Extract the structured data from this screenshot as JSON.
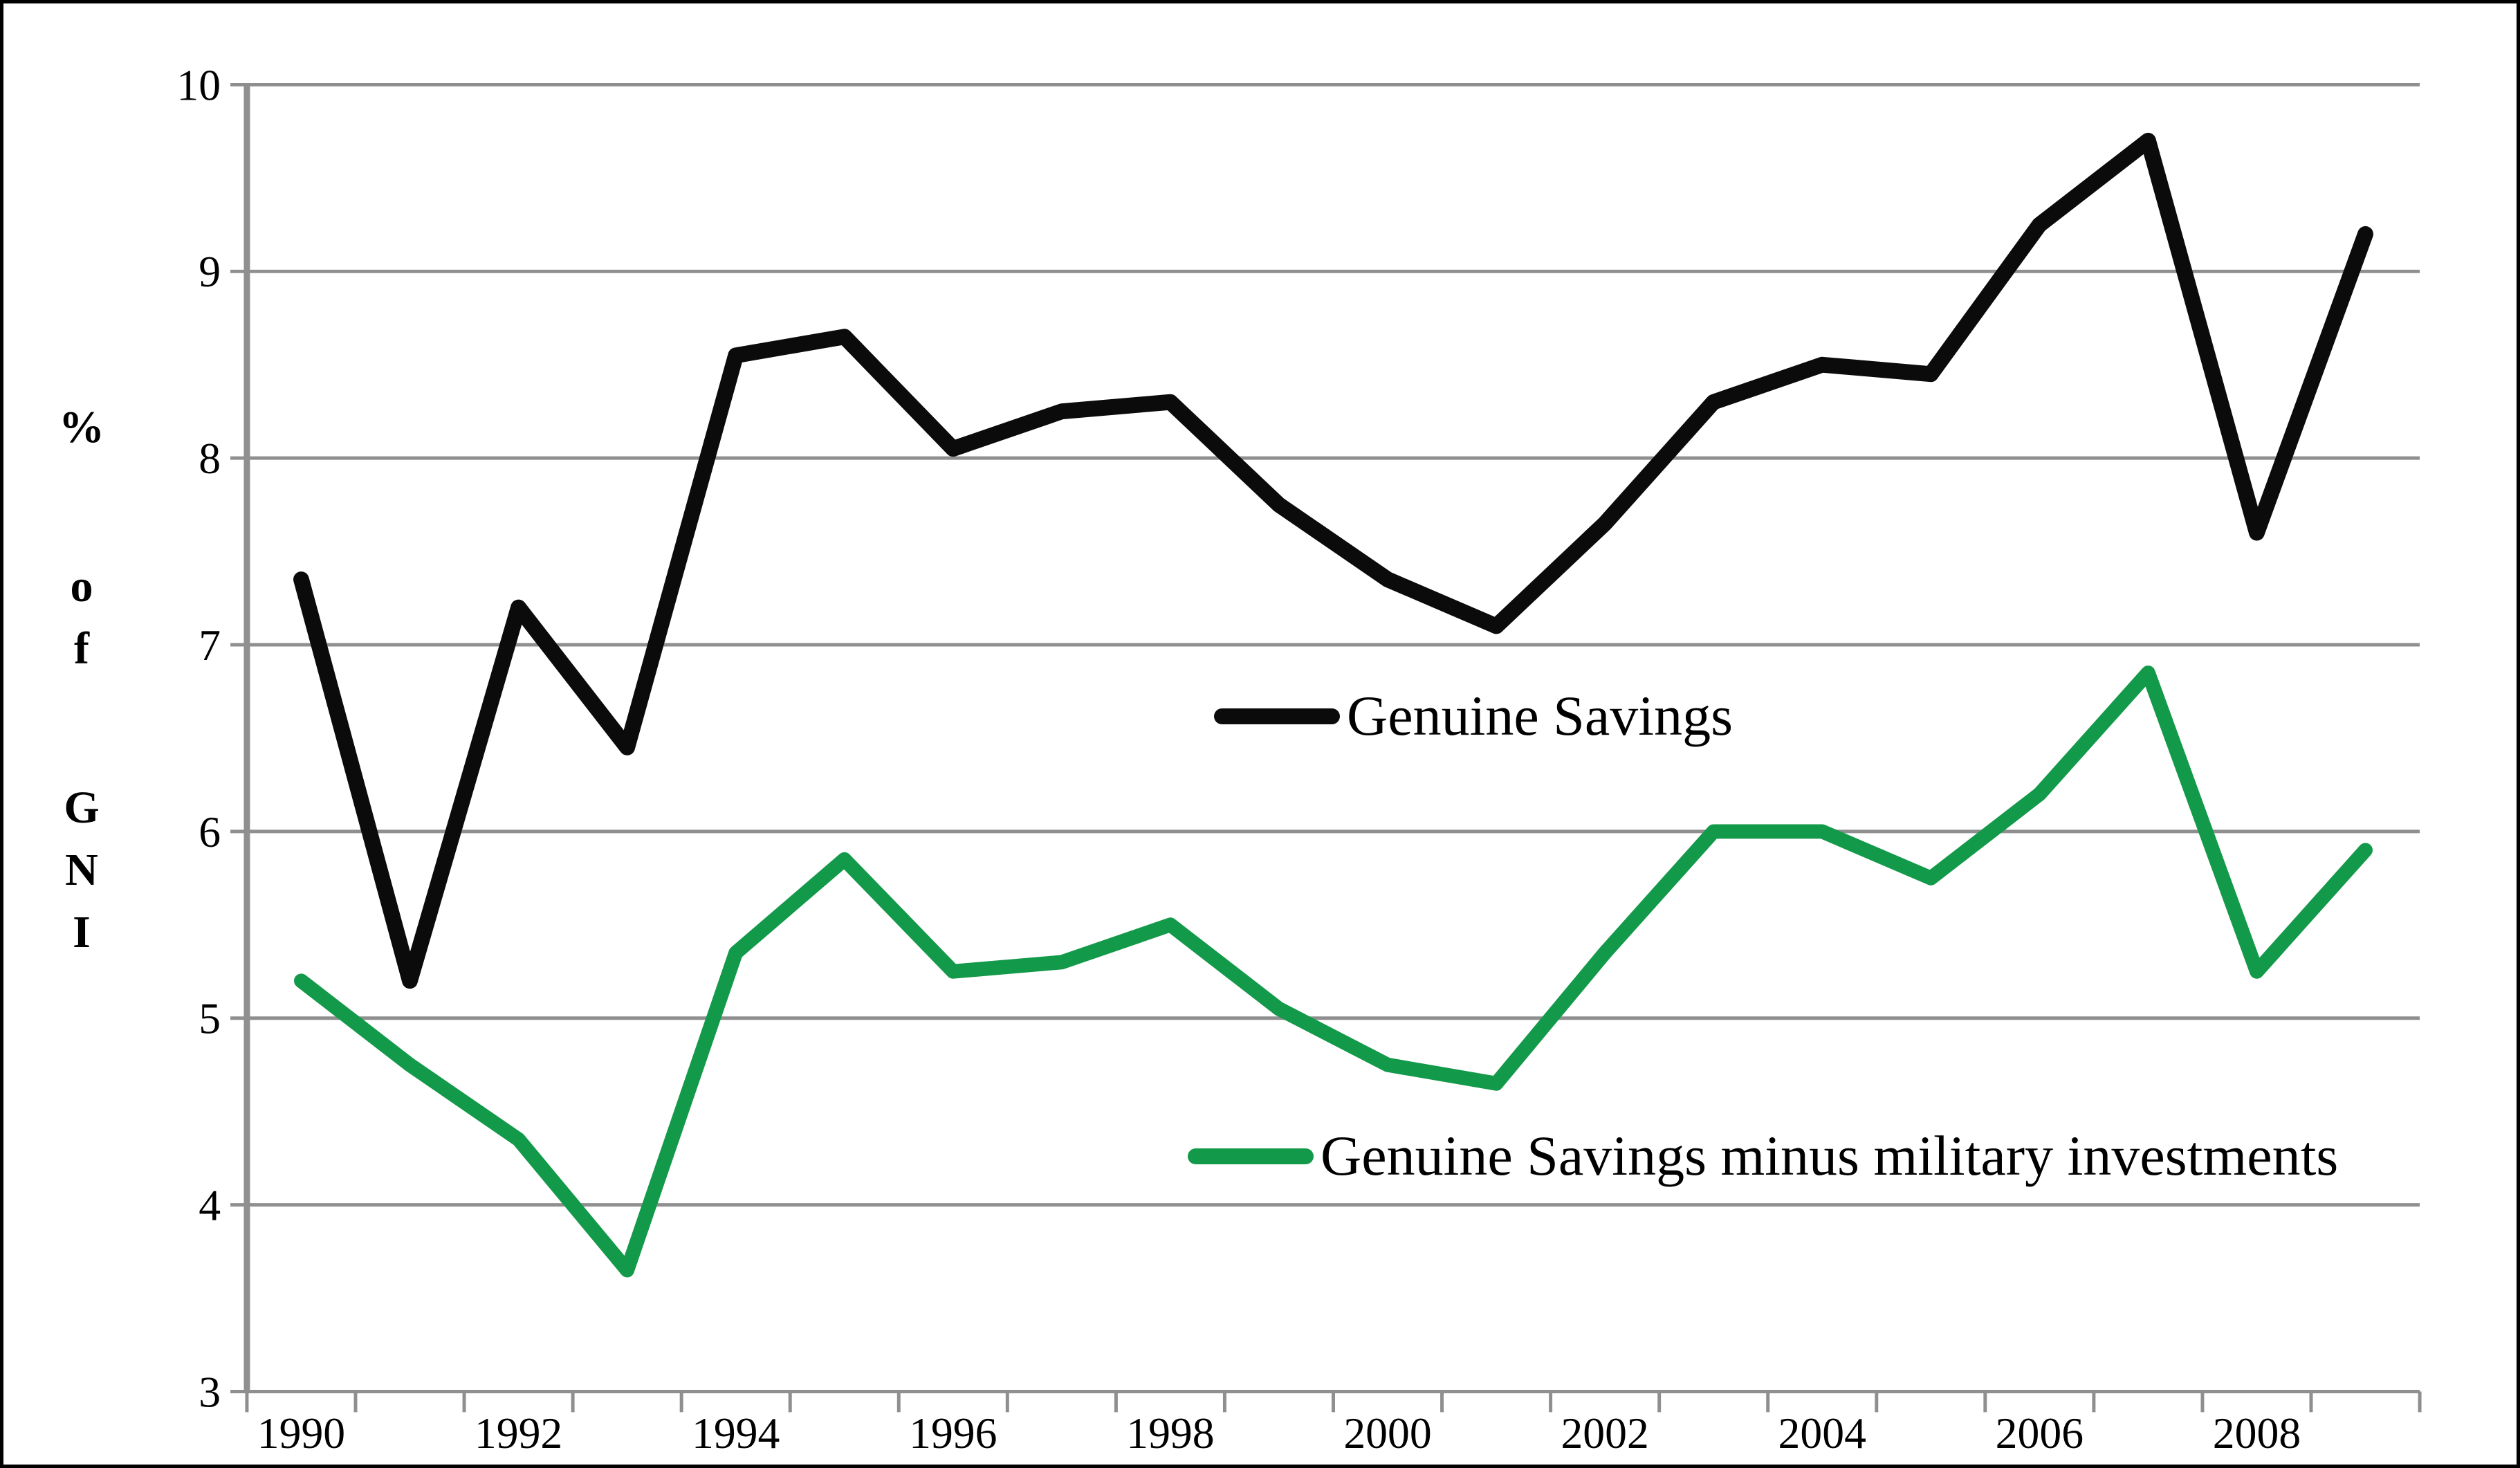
{
  "chart_data": {
    "type": "line",
    "title": "",
    "xlabel": "",
    "ylabel": "% of GNI",
    "ylim": [
      3,
      10
    ],
    "yticks": [
      3,
      4,
      5,
      6,
      7,
      8,
      9,
      10
    ],
    "categories": [
      1990,
      1991,
      1992,
      1993,
      1994,
      1995,
      1996,
      1997,
      1998,
      1999,
      2000,
      2001,
      2002,
      2003,
      2004,
      2005,
      2006,
      2007,
      2008,
      2009
    ],
    "xtick_labels": [
      "1990",
      "1992",
      "1994",
      "1996",
      "1998",
      "2000",
      "2002",
      "2004",
      "2006",
      "2008"
    ],
    "grid": true,
    "legend_position": "inside-right",
    "series": [
      {
        "name": "Genuine Savings",
        "color": "#0b0b0b",
        "line_width": 23,
        "values": [
          7.35,
          5.2,
          7.2,
          6.45,
          8.55,
          8.65,
          8.05,
          8.25,
          8.3,
          7.75,
          7.35,
          7.1,
          7.65,
          8.3,
          8.5,
          8.45,
          9.25,
          9.7,
          7.6,
          9.2
        ]
      },
      {
        "name": "Genuine Savings minus military investments",
        "color": "#13994a",
        "line_width": 21,
        "values": [
          5.2,
          4.75,
          4.35,
          3.65,
          5.35,
          5.85,
          5.25,
          5.3,
          5.5,
          5.05,
          4.75,
          4.65,
          5.35,
          6.0,
          6.0,
          5.75,
          6.2,
          6.85,
          5.25,
          5.9
        ]
      }
    ],
    "colors": {
      "grid": "#8f8f8f",
      "axis": "#8f8f8f",
      "tick_text": "#000000",
      "border": "#000000",
      "background": "#ffffff"
    }
  }
}
